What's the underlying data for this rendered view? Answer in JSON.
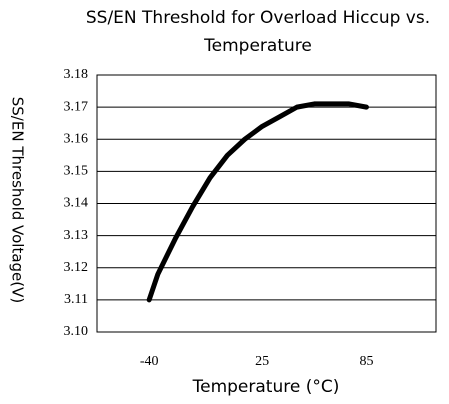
{
  "chart_data": {
    "type": "line",
    "title": [
      "SS/EN Threshold for Overload Hiccup vs.",
      "Temperature"
    ],
    "x_label": "Temperature (°C)",
    "y_label": "SS/EN Threshold Voltage(V)",
    "x": [
      -40,
      -35,
      -25,
      -15,
      -5,
      5,
      15,
      25,
      35,
      45,
      55,
      65,
      75,
      85
    ],
    "series": [
      {
        "name": "SS/EN Threshold",
        "color": "#000000",
        "values": [
          3.11,
          3.118,
          3.129,
          3.139,
          3.148,
          3.155,
          3.16,
          3.164,
          3.167,
          3.17,
          3.171,
          3.171,
          3.171,
          3.17
        ]
      }
    ],
    "xlim": [
      -70,
      125
    ],
    "xticks": [
      -40,
      25,
      85
    ],
    "ylim": [
      3.1,
      3.18
    ],
    "yticks": [
      {
        "value": 3.1,
        "label": "3.10"
      },
      3.11,
      3.12,
      3.13,
      3.14,
      3.15,
      3.16,
      3.17,
      3.18
    ],
    "grid": true
  }
}
